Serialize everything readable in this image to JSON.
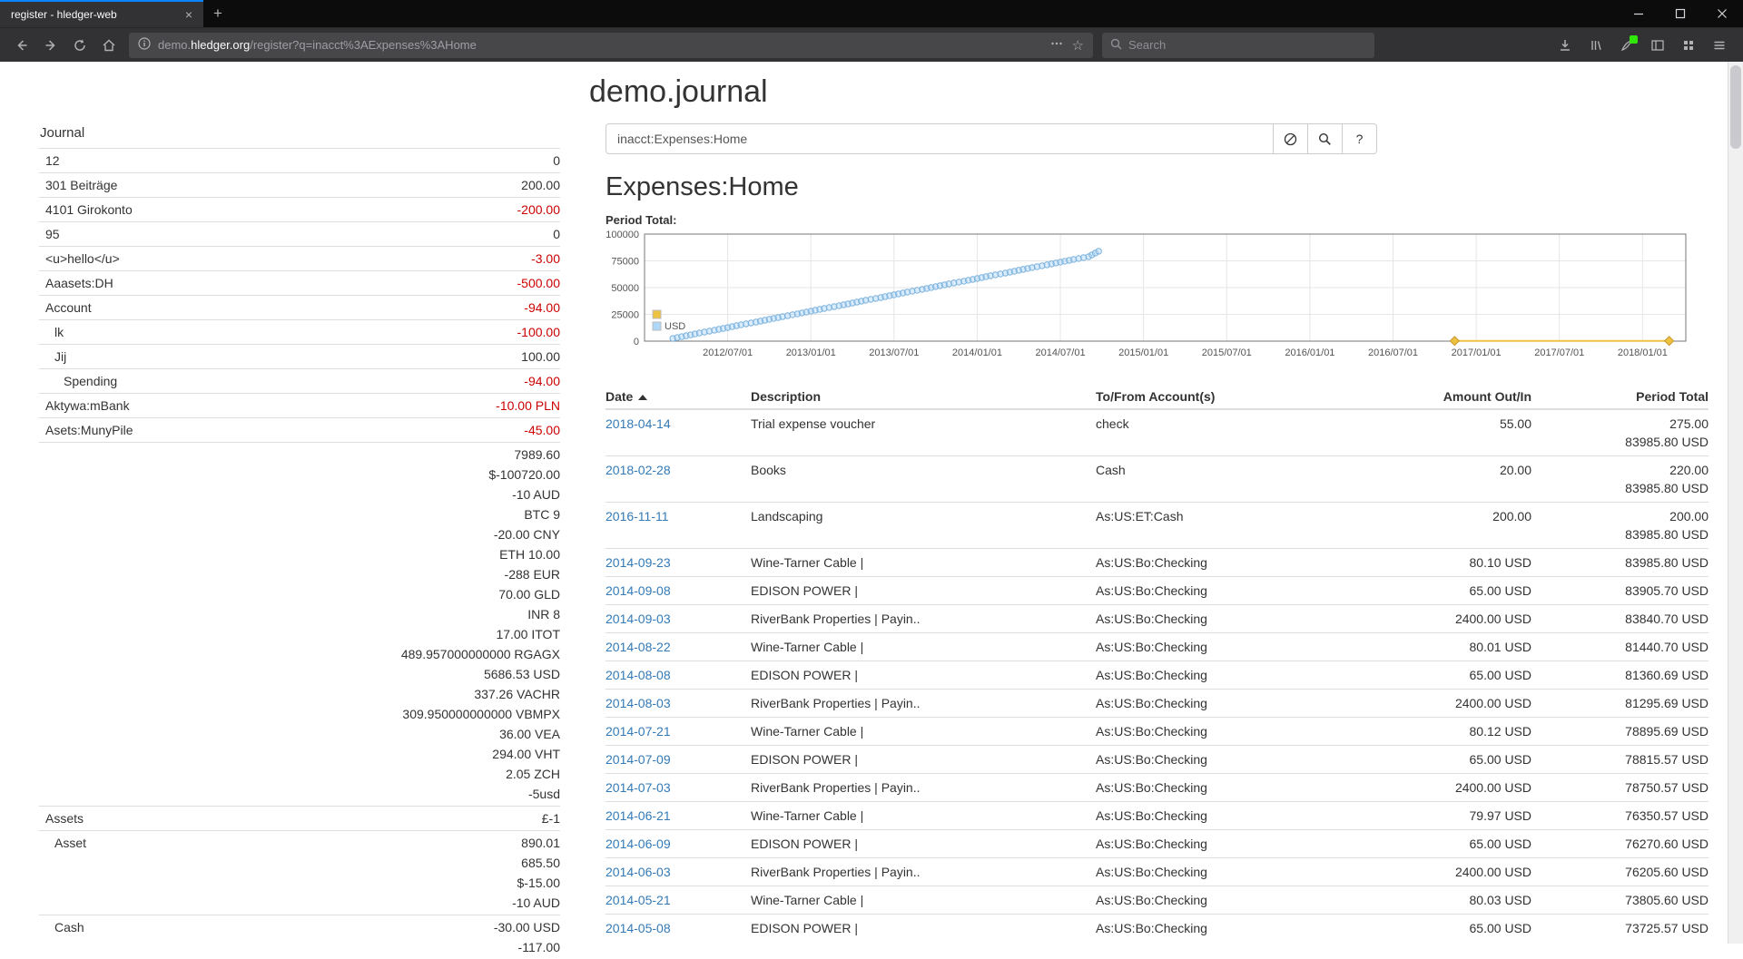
{
  "colors": {
    "accent": "#0a84ff",
    "negative": "#cc0000",
    "link": "#337ab7",
    "series_yellow": "#edc240",
    "series_blue": "#afd8f8"
  },
  "browser": {
    "tab_title": "register - hledger-web",
    "url_subdomain": "demo.",
    "url_domain": "hledger.org",
    "url_path": "/register?q=inacct%3AExpenses%3AHome",
    "search_placeholder": "Search"
  },
  "page": {
    "title": "demo.journal"
  },
  "search": {
    "query": "inacct:Expenses:Home",
    "help_label": "?"
  },
  "register_view": {
    "heading": "Expenses:Home",
    "period_total_label": "Period Total:"
  },
  "sidebar": {
    "heading": "Journal",
    "rows": [
      {
        "label": "12",
        "indent": 1,
        "amounts": [
          {
            "text": "0",
            "neg": false
          }
        ]
      },
      {
        "label": "301 Beiträge",
        "indent": 1,
        "amounts": [
          {
            "text": "200.00",
            "neg": false
          }
        ]
      },
      {
        "label": "4101 Girokonto",
        "indent": 1,
        "amounts": [
          {
            "text": "-200.00",
            "neg": true
          }
        ]
      },
      {
        "label": "95",
        "indent": 1,
        "amounts": [
          {
            "text": "0",
            "neg": false
          }
        ]
      },
      {
        "label": "<u>hello</u>",
        "indent": 1,
        "amounts": [
          {
            "text": "-3.00",
            "neg": true
          }
        ]
      },
      {
        "label": "Aaasets:DH",
        "indent": 1,
        "amounts": [
          {
            "text": "-500.00",
            "neg": true
          }
        ]
      },
      {
        "label": "Account",
        "indent": 1,
        "amounts": [
          {
            "text": "-94.00",
            "neg": true
          }
        ]
      },
      {
        "label": "lk",
        "indent": 2,
        "amounts": [
          {
            "text": "-100.00",
            "neg": true
          }
        ]
      },
      {
        "label": "Jij",
        "indent": 2,
        "amounts": [
          {
            "text": "100.00",
            "neg": false
          }
        ]
      },
      {
        "label": "Spending",
        "indent": 3,
        "amounts": [
          {
            "text": "-94.00",
            "neg": true
          }
        ]
      },
      {
        "label": "Aktywa:mBank",
        "indent": 1,
        "amounts": [
          {
            "text": "-10.00 PLN",
            "neg": true
          }
        ]
      },
      {
        "label": "Asets:MunyPile",
        "indent": 1,
        "amounts": [
          {
            "text": "-45.00",
            "neg": true
          }
        ]
      },
      {
        "label": "",
        "indent": 1,
        "amounts": [
          {
            "text": "7989.60",
            "neg": false
          },
          {
            "text": "$-100720.00",
            "neg": false
          },
          {
            "text": "-10 AUD",
            "neg": false
          },
          {
            "text": "BTC 9",
            "neg": false
          },
          {
            "text": "-20.00 CNY",
            "neg": false
          },
          {
            "text": "ETH 10.00",
            "neg": false
          },
          {
            "text": "-288 EUR",
            "neg": false
          },
          {
            "text": "70.00 GLD",
            "neg": false
          },
          {
            "text": "INR 8",
            "neg": false
          },
          {
            "text": "17.00 ITOT",
            "neg": false
          },
          {
            "text": "489.957000000000 RGAGX",
            "neg": false
          },
          {
            "text": "5686.53 USD",
            "neg": false
          },
          {
            "text": "337.26 VACHR",
            "neg": false
          },
          {
            "text": "309.950000000000 VBMPX",
            "neg": false
          },
          {
            "text": "36.00 VEA",
            "neg": false
          },
          {
            "text": "294.00 VHT",
            "neg": false
          },
          {
            "text": "2.05 ZCH",
            "neg": false
          },
          {
            "text": "-5usd",
            "neg": false
          }
        ]
      },
      {
        "label": "Assets",
        "indent": 1,
        "amounts": [
          {
            "text": "£-1",
            "neg": false
          }
        ]
      },
      {
        "label": "Asset",
        "indent": 2,
        "amounts": [
          {
            "text": "890.01",
            "neg": false
          },
          {
            "text": "685.50",
            "neg": false
          },
          {
            "text": "$-15.00",
            "neg": false
          },
          {
            "text": "-10 AUD",
            "neg": false
          }
        ]
      },
      {
        "label": "Cash",
        "indent": 2,
        "amounts": [
          {
            "text": "-30.00 USD",
            "neg": false
          },
          {
            "text": "-117.00",
            "neg": false
          }
        ]
      }
    ]
  },
  "chart_data": {
    "type": "scatter",
    "title": "Period Total:",
    "x_axis": {
      "range": [
        2012.0,
        2018.26
      ],
      "tick_years": [
        2012.5,
        2013.0,
        2013.5,
        2014.0,
        2014.5,
        2015.0,
        2015.5,
        2016.0,
        2016.5,
        2017.0,
        2017.5,
        2018.0
      ],
      "ticks": [
        "2012/07/01",
        "2013/01/01",
        "2013/07/01",
        "2014/01/01",
        "2014/07/01",
        "2015/01/01",
        "2015/07/01",
        "2016/01/01",
        "2016/07/01",
        "2017/01/01",
        "2017/07/01",
        "2018/01/01"
      ]
    },
    "y_axis": {
      "range": [
        0,
        100000
      ],
      "ticks": [
        0,
        25000,
        50000,
        75000,
        100000
      ]
    },
    "legend": [
      {
        "label": "",
        "color": "#edc240"
      },
      {
        "label": "USD",
        "color": "#afd8f8"
      }
    ],
    "series": [
      {
        "name": "USD",
        "type": "scatter",
        "marker": "circle",
        "color": "#afd8f8",
        "stroke": "#7ab1dc",
        "points": [
          [
            2012.17,
            2500
          ],
          [
            2012.25,
            5000
          ],
          [
            2012.33,
            7600
          ],
          [
            2012.42,
            10200
          ],
          [
            2012.5,
            12700
          ],
          [
            2012.58,
            15300
          ],
          [
            2012.67,
            17800
          ],
          [
            2012.75,
            20400
          ],
          [
            2012.83,
            22900
          ],
          [
            2012.92,
            25500
          ],
          [
            2013.0,
            28000
          ],
          [
            2013.08,
            30500
          ],
          [
            2013.17,
            33100
          ],
          [
            2013.25,
            35600
          ],
          [
            2013.33,
            38200
          ],
          [
            2013.42,
            40700
          ],
          [
            2013.5,
            43300
          ],
          [
            2013.58,
            45800
          ],
          [
            2013.67,
            48400
          ],
          [
            2013.75,
            50900
          ],
          [
            2013.83,
            53500
          ],
          [
            2013.92,
            56000
          ],
          [
            2014.0,
            58500
          ],
          [
            2014.08,
            61100
          ],
          [
            2014.17,
            63600
          ],
          [
            2014.25,
            66200
          ],
          [
            2014.33,
            68700
          ],
          [
            2014.42,
            71300
          ],
          [
            2014.5,
            73800
          ],
          [
            2014.58,
            76300
          ],
          [
            2014.67,
            78900
          ],
          [
            2014.73,
            83986
          ]
        ]
      },
      {
        "name": "",
        "type": "line",
        "marker": "diamond",
        "color": "#edc240",
        "stroke": "#c9962e",
        "points": [
          [
            2016.87,
            200
          ],
          [
            2018.16,
            220
          ]
        ]
      }
    ]
  },
  "register": {
    "columns": [
      "Date",
      "Description",
      "To/From Account(s)",
      "Amount Out/In",
      "Period Total"
    ],
    "rows": [
      {
        "date": "2018-04-14",
        "description": "Trial expense voucher",
        "account": "check",
        "amount": "55.00",
        "totals": [
          "275.00",
          "83985.80 USD"
        ]
      },
      {
        "date": "2018-02-28",
        "description": "Books",
        "account": "Cash",
        "amount": "20.00",
        "totals": [
          "220.00",
          "83985.80 USD"
        ]
      },
      {
        "date": "2016-11-11",
        "description": "Landscaping",
        "account": "As:US:ET:Cash",
        "amount": "200.00",
        "totals": [
          "200.00",
          "83985.80 USD"
        ]
      },
      {
        "date": "2014-09-23",
        "description": "Wine-Tarner Cable |",
        "account": "As:US:Bo:Checking",
        "amount": "80.10 USD",
        "totals": [
          "83985.80 USD"
        ]
      },
      {
        "date": "2014-09-08",
        "description": "EDISON POWER |",
        "account": "As:US:Bo:Checking",
        "amount": "65.00 USD",
        "totals": [
          "83905.70 USD"
        ]
      },
      {
        "date": "2014-09-03",
        "description": "RiverBank Properties | Payin..",
        "account": "As:US:Bo:Checking",
        "amount": "2400.00 USD",
        "totals": [
          "83840.70 USD"
        ]
      },
      {
        "date": "2014-08-22",
        "description": "Wine-Tarner Cable |",
        "account": "As:US:Bo:Checking",
        "amount": "80.01 USD",
        "totals": [
          "81440.70 USD"
        ]
      },
      {
        "date": "2014-08-08",
        "description": "EDISON POWER |",
        "account": "As:US:Bo:Checking",
        "amount": "65.00 USD",
        "totals": [
          "81360.69 USD"
        ]
      },
      {
        "date": "2014-08-03",
        "description": "RiverBank Properties | Payin..",
        "account": "As:US:Bo:Checking",
        "amount": "2400.00 USD",
        "totals": [
          "81295.69 USD"
        ]
      },
      {
        "date": "2014-07-21",
        "description": "Wine-Tarner Cable |",
        "account": "As:US:Bo:Checking",
        "amount": "80.12 USD",
        "totals": [
          "78895.69 USD"
        ]
      },
      {
        "date": "2014-07-09",
        "description": "EDISON POWER |",
        "account": "As:US:Bo:Checking",
        "amount": "65.00 USD",
        "totals": [
          "78815.57 USD"
        ]
      },
      {
        "date": "2014-07-03",
        "description": "RiverBank Properties | Payin..",
        "account": "As:US:Bo:Checking",
        "amount": "2400.00 USD",
        "totals": [
          "78750.57 USD"
        ]
      },
      {
        "date": "2014-06-21",
        "description": "Wine-Tarner Cable |",
        "account": "As:US:Bo:Checking",
        "amount": "79.97 USD",
        "totals": [
          "76350.57 USD"
        ]
      },
      {
        "date": "2014-06-09",
        "description": "EDISON POWER |",
        "account": "As:US:Bo:Checking",
        "amount": "65.00 USD",
        "totals": [
          "76270.60 USD"
        ]
      },
      {
        "date": "2014-06-03",
        "description": "RiverBank Properties | Payin..",
        "account": "As:US:Bo:Checking",
        "amount": "2400.00 USD",
        "totals": [
          "76205.60 USD"
        ]
      },
      {
        "date": "2014-05-21",
        "description": "Wine-Tarner Cable |",
        "account": "As:US:Bo:Checking",
        "amount": "80.03 USD",
        "totals": [
          "73805.60 USD"
        ]
      },
      {
        "date": "2014-05-08",
        "description": "EDISON POWER |",
        "account": "As:US:Bo:Checking",
        "amount": "65.00 USD",
        "totals": [
          "73725.57 USD"
        ]
      }
    ]
  }
}
